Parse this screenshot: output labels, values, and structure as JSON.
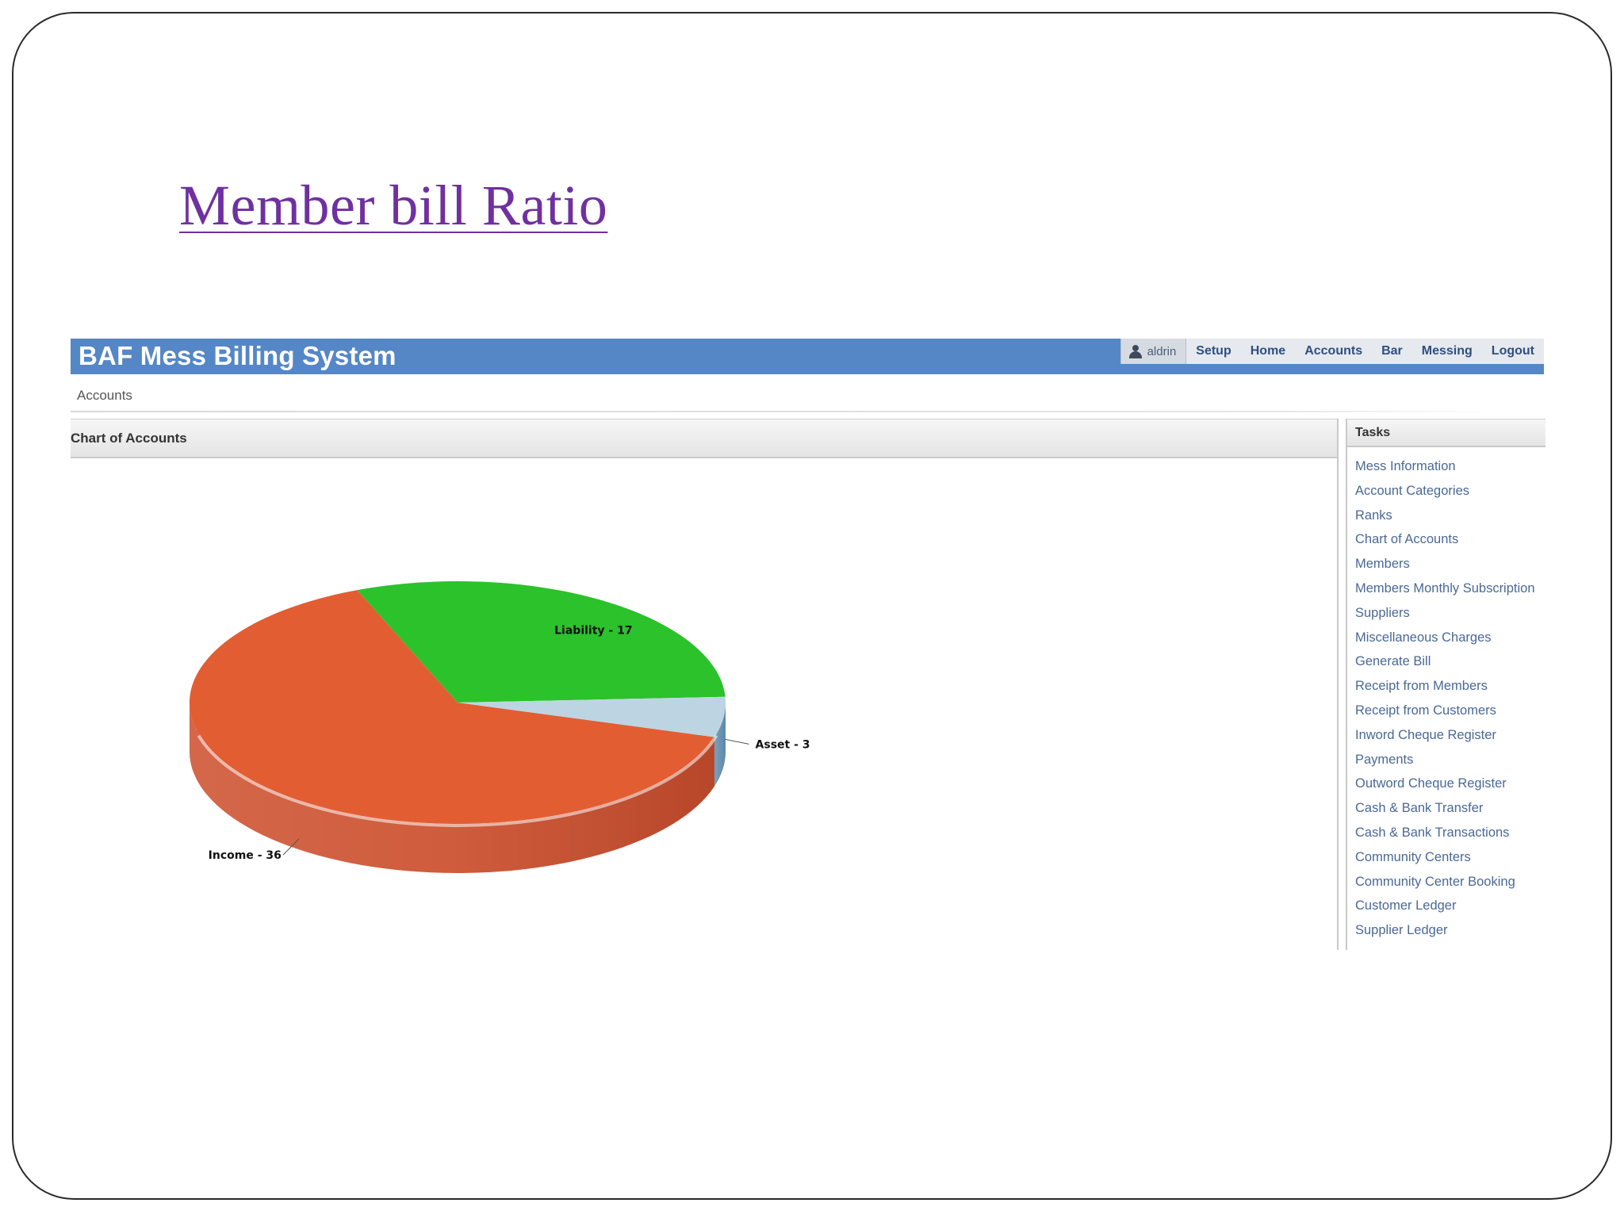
{
  "slide": {
    "title": "Member bill Ratio"
  },
  "app": {
    "title": "BAF Mess Billing System",
    "nav": {
      "user": "aldrin",
      "items": [
        "Setup",
        "Home",
        "Accounts",
        "Bar",
        "Messing",
        "Logout"
      ]
    },
    "breadcrumb": "Accounts"
  },
  "panel": {
    "title": "Chart of Accounts"
  },
  "chart_data": {
    "type": "pie",
    "title": "",
    "slices": [
      {
        "label": "Liability - 17",
        "name": "Liability",
        "value": 17,
        "color": "#2bc22b"
      },
      {
        "label": "Asset - 3",
        "name": "Asset",
        "value": 3,
        "color": "#bdd5e3"
      },
      {
        "label": "Income - 36",
        "name": "Income",
        "value": 36,
        "color": "#e35d33"
      }
    ]
  },
  "tasks": {
    "title": "Tasks",
    "items": [
      "Mess Information",
      "Account Categories",
      "Ranks",
      "Chart of Accounts",
      "Members",
      "Members Monthly Subscription",
      "Suppliers",
      "Miscellaneous Charges",
      "Generate Bill",
      "Receipt from Members",
      "Receipt from Customers",
      "Inword Cheque Register",
      "Payments",
      "Outword Cheque Register",
      "Cash & Bank Transfer",
      "Cash & Bank Transactions",
      "Community Centers",
      "Community Center Booking",
      "Customer Ledger",
      "Supplier Ledger"
    ]
  }
}
